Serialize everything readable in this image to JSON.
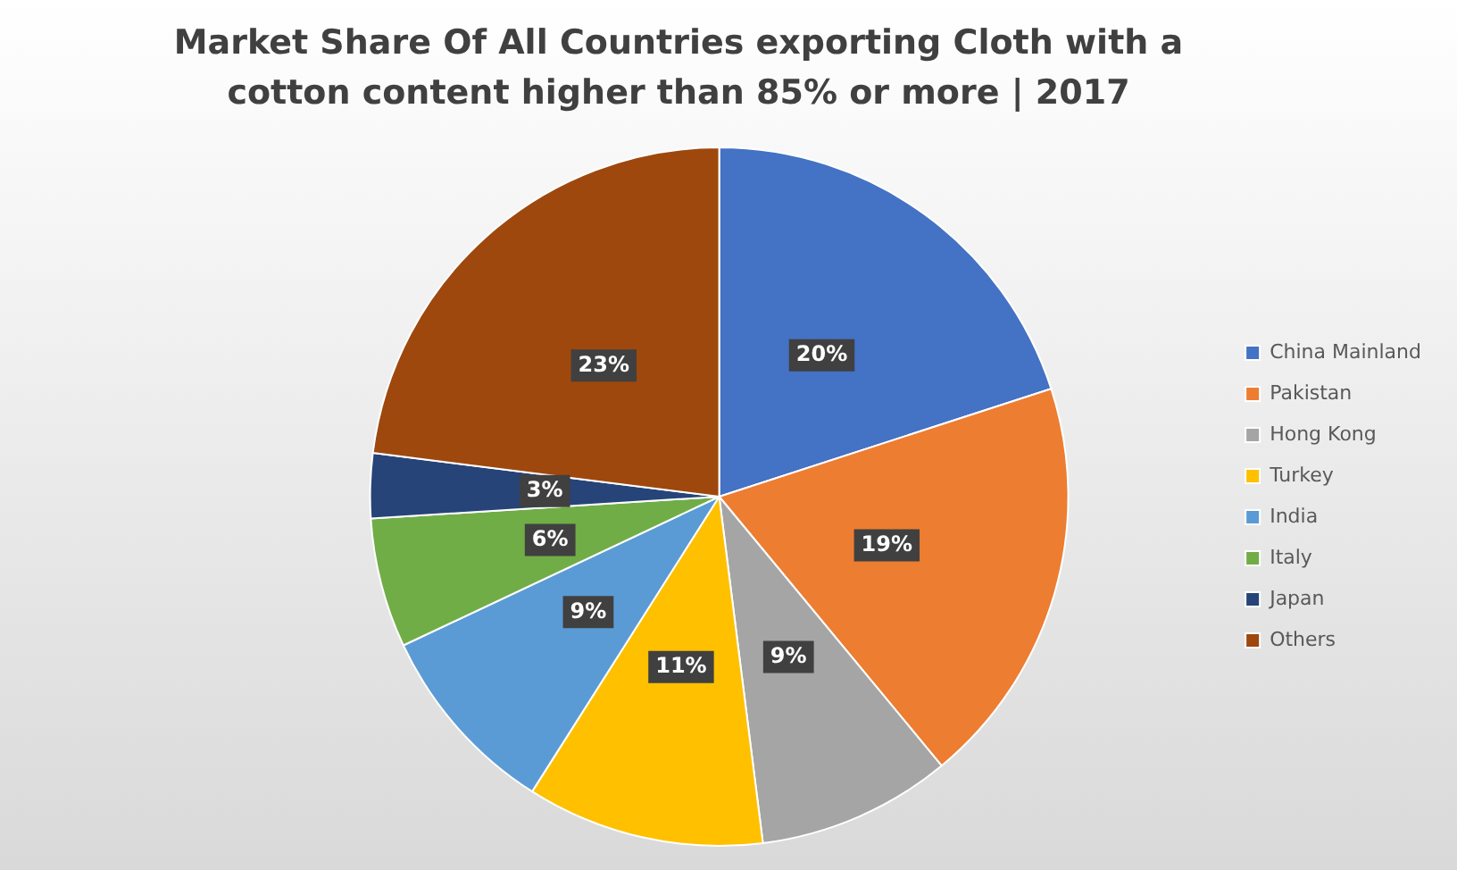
{
  "chart_data": {
    "type": "pie",
    "title": "Market Share Of All Countries exporting Cloth with a cotton content higher than 85% or more | 2017",
    "categories": [
      "China Mainland",
      "Pakistan",
      "Hong Kong",
      "Turkey",
      "India",
      "Italy",
      "Japan",
      "Others"
    ],
    "values": [
      20,
      19,
      9,
      11,
      9,
      6,
      3,
      23
    ],
    "colors": [
      "#4472c4",
      "#ed7d31",
      "#a5a5a5",
      "#ffc000",
      "#5b9bd5",
      "#70ad47",
      "#264478",
      "#9e480e"
    ],
    "value_labels": [
      "20%",
      "19%",
      "9%",
      "11%",
      "9%",
      "6%",
      "3%",
      "23%"
    ],
    "legend": "right"
  }
}
